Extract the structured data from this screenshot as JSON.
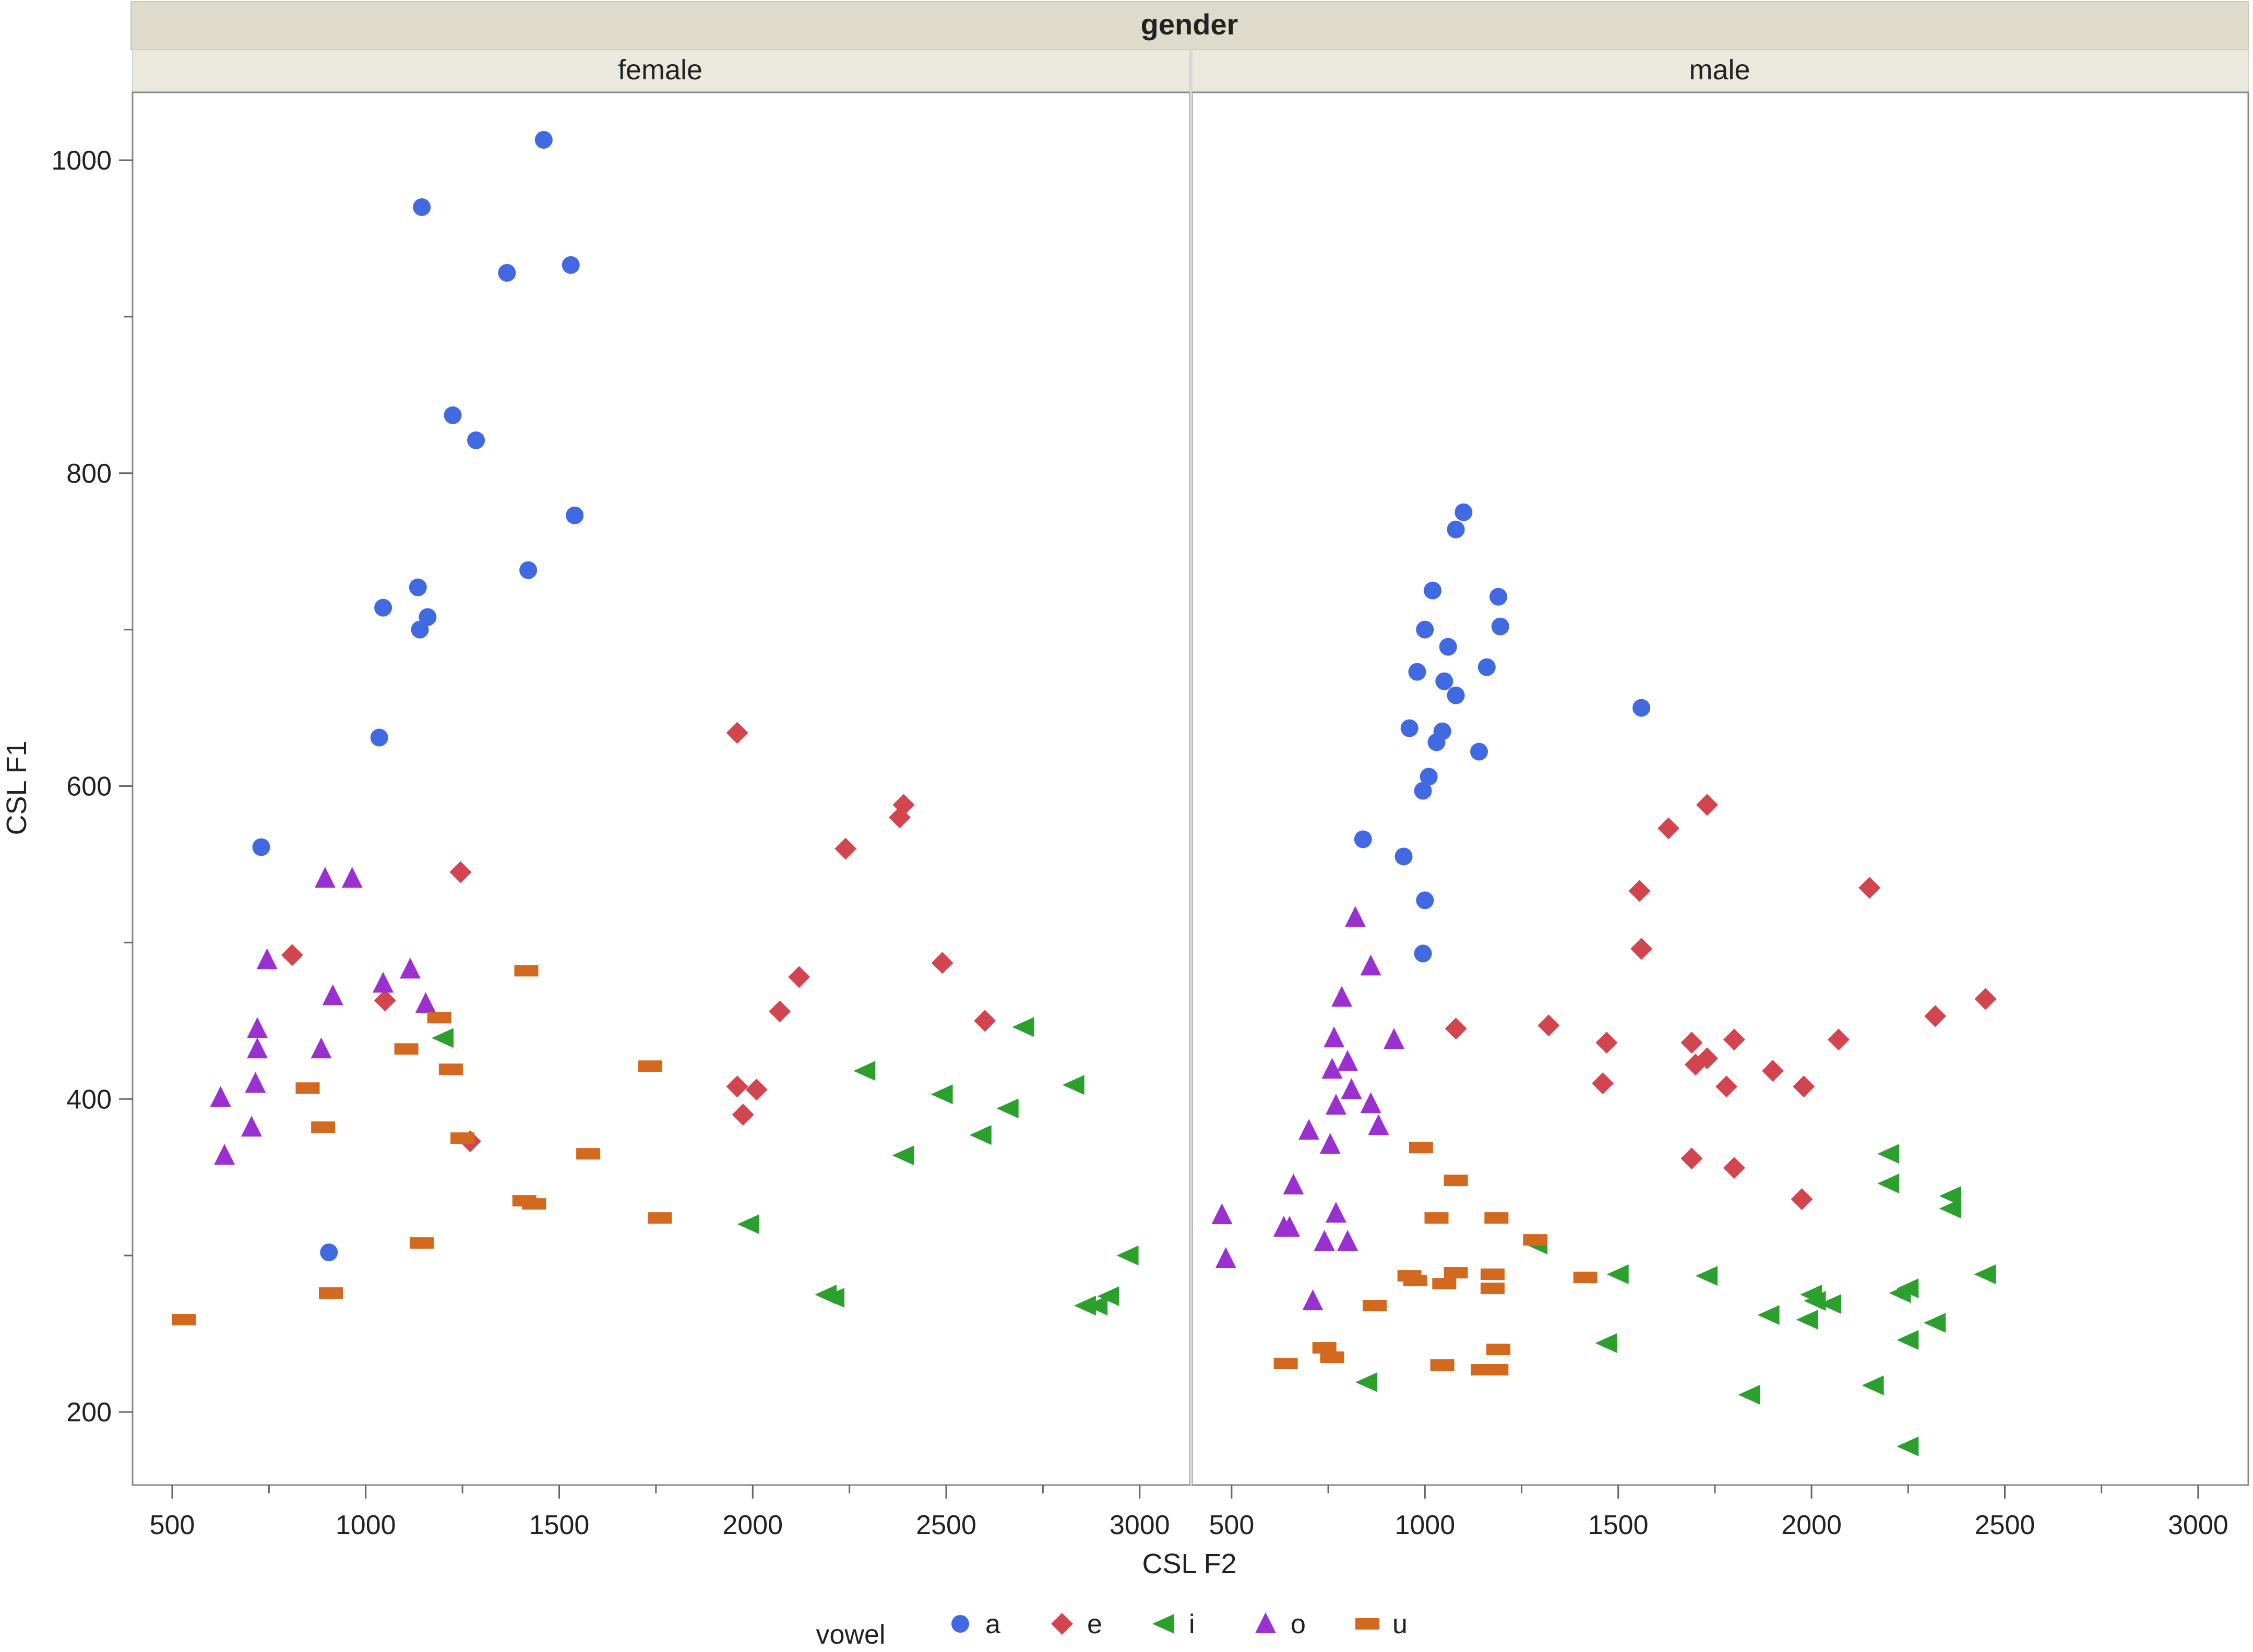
{
  "chart_data": {
    "type": "scatter",
    "facet_header": "gender",
    "panels": [
      "female",
      "male"
    ],
    "xlabel": "CSL F2",
    "ylabel": "CSL F1",
    "xlim": [
      400,
      3100
    ],
    "ylim": [
      155,
      1050
    ],
    "x_ticks": [
      500,
      1000,
      1500,
      2000,
      2500,
      3000
    ],
    "y_ticks": [
      200,
      400,
      600,
      800,
      1000
    ],
    "legend_title": "vowel",
    "legend_position": "bottom",
    "series": [
      {
        "name": "a",
        "color": "#4169E1",
        "marker": "circle",
        "female": [
          [
            1460,
            1013
          ],
          [
            1145,
            970
          ],
          [
            1365,
            928
          ],
          [
            1530,
            933
          ],
          [
            1225,
            837
          ],
          [
            1285,
            821
          ],
          [
            1540,
            773
          ],
          [
            1135,
            727
          ],
          [
            1160,
            708
          ],
          [
            1045,
            714
          ],
          [
            1140,
            700
          ],
          [
            1420,
            738
          ],
          [
            1035,
            631
          ],
          [
            730,
            561
          ],
          [
            905,
            302
          ]
        ],
        "male": [
          [
            1100,
            775
          ],
          [
            1080,
            764
          ],
          [
            1020,
            725
          ],
          [
            1190,
            721
          ],
          [
            1195,
            702
          ],
          [
            1000,
            700
          ],
          [
            1060,
            689
          ],
          [
            980,
            673
          ],
          [
            1050,
            667
          ],
          [
            1160,
            676
          ],
          [
            1080,
            658
          ],
          [
            1560,
            650
          ],
          [
            960,
            637
          ],
          [
            1045,
            635
          ],
          [
            1030,
            628
          ],
          [
            1140,
            622
          ],
          [
            1010,
            606
          ],
          [
            995,
            597
          ],
          [
            840,
            566
          ],
          [
            945,
            555
          ],
          [
            1000,
            527
          ],
          [
            995,
            493
          ]
        ]
      },
      {
        "name": "e",
        "color": "#D2454F",
        "marker": "diamond",
        "female": [
          [
            1960,
            634
          ],
          [
            2390,
            588
          ],
          [
            2380,
            580
          ],
          [
            2240,
            560
          ],
          [
            1245,
            545
          ],
          [
            2120,
            478
          ],
          [
            2490,
            487
          ],
          [
            2070,
            456
          ],
          [
            810,
            492
          ],
          [
            1050,
            463
          ],
          [
            2600,
            450
          ],
          [
            1960,
            408
          ],
          [
            2010,
            406
          ],
          [
            1975,
            390
          ],
          [
            1270,
            373
          ]
        ],
        "male": [
          [
            1730,
            588
          ],
          [
            1630,
            573
          ],
          [
            2150,
            535
          ],
          [
            1555,
            533
          ],
          [
            1560,
            496
          ],
          [
            2450,
            464
          ],
          [
            2320,
            453
          ],
          [
            1080,
            445
          ],
          [
            1320,
            447
          ],
          [
            1470,
            436
          ],
          [
            1690,
            436
          ],
          [
            1700,
            422
          ],
          [
            1730,
            426
          ],
          [
            1800,
            438
          ],
          [
            2070,
            438
          ],
          [
            1780,
            408
          ],
          [
            1900,
            418
          ],
          [
            1980,
            408
          ],
          [
            1460,
            410
          ],
          [
            1690,
            362
          ],
          [
            1800,
            356
          ],
          [
            1975,
            336
          ]
        ]
      },
      {
        "name": "i",
        "color": "#2CA02C",
        "marker": "triangle-left",
        "female": [
          [
            2700,
            446
          ],
          [
            2830,
            409
          ],
          [
            2290,
            418
          ],
          [
            2490,
            403
          ],
          [
            2660,
            394
          ],
          [
            2590,
            377
          ],
          [
            2390,
            364
          ],
          [
            1990,
            320
          ],
          [
            2970,
            300
          ],
          [
            2190,
            275
          ],
          [
            2210,
            273
          ],
          [
            2920,
            274
          ],
          [
            2860,
            268
          ],
          [
            2890,
            268
          ],
          [
            1200,
            439
          ]
        ],
        "male": [
          [
            2200,
            365
          ],
          [
            2200,
            346
          ],
          [
            2360,
            338
          ],
          [
            2360,
            330
          ],
          [
            1290,
            307
          ],
          [
            1500,
            288
          ],
          [
            1730,
            287
          ],
          [
            2450,
            288
          ],
          [
            2000,
            275
          ],
          [
            2010,
            271
          ],
          [
            2050,
            269
          ],
          [
            1890,
            262
          ],
          [
            1990,
            259
          ],
          [
            2320,
            257
          ],
          [
            2230,
            276
          ],
          [
            2250,
            279
          ],
          [
            2250,
            246
          ],
          [
            1470,
            244
          ],
          [
            850,
            219
          ],
          [
            2160,
            217
          ],
          [
            1840,
            211
          ],
          [
            2250,
            178
          ]
        ]
      },
      {
        "name": "o",
        "color": "#9B30D0",
        "marker": "triangle-up",
        "female": [
          [
            895,
            541
          ],
          [
            965,
            541
          ],
          [
            745,
            489
          ],
          [
            1115,
            483
          ],
          [
            915,
            466
          ],
          [
            1045,
            474
          ],
          [
            1155,
            461
          ],
          [
            720,
            445
          ],
          [
            720,
            432
          ],
          [
            885,
            432
          ],
          [
            715,
            410
          ],
          [
            625,
            401
          ],
          [
            705,
            382
          ],
          [
            635,
            364
          ]
        ],
        "male": [
          [
            820,
            516
          ],
          [
            860,
            485
          ],
          [
            785,
            465
          ],
          [
            765,
            439
          ],
          [
            920,
            438
          ],
          [
            800,
            424
          ],
          [
            760,
            419
          ],
          [
            810,
            406
          ],
          [
            770,
            396
          ],
          [
            860,
            397
          ],
          [
            880,
            383
          ],
          [
            700,
            380
          ],
          [
            755,
            371
          ],
          [
            660,
            345
          ],
          [
            770,
            327
          ],
          [
            475,
            326
          ],
          [
            635,
            318
          ],
          [
            650,
            318
          ],
          [
            740,
            309
          ],
          [
            800,
            309
          ],
          [
            485,
            298
          ],
          [
            710,
            271
          ]
        ]
      },
      {
        "name": "u",
        "color": "#D2691E",
        "marker": "dash",
        "female": [
          [
            1415,
            482
          ],
          [
            1190,
            452
          ],
          [
            1105,
            432
          ],
          [
            1220,
            419
          ],
          [
            1735,
            421
          ],
          [
            850,
            407
          ],
          [
            890,
            382
          ],
          [
            1250,
            375
          ],
          [
            1575,
            365
          ],
          [
            1410,
            335
          ],
          [
            1435,
            333
          ],
          [
            1760,
            324
          ],
          [
            1145,
            308
          ],
          [
            910,
            276
          ],
          [
            530,
            259
          ]
        ],
        "male": [
          [
            990,
            369
          ],
          [
            1080,
            348
          ],
          [
            1030,
            324
          ],
          [
            1185,
            324
          ],
          [
            1285,
            310
          ],
          [
            960,
            287
          ],
          [
            975,
            284
          ],
          [
            1050,
            282
          ],
          [
            1080,
            289
          ],
          [
            1175,
            288
          ],
          [
            1415,
            286
          ],
          [
            1175,
            279
          ],
          [
            870,
            268
          ],
          [
            740,
            241
          ],
          [
            760,
            235
          ],
          [
            640,
            231
          ],
          [
            1045,
            230
          ],
          [
            1150,
            227
          ],
          [
            1185,
            227
          ],
          [
            1190,
            240
          ]
        ]
      }
    ]
  }
}
